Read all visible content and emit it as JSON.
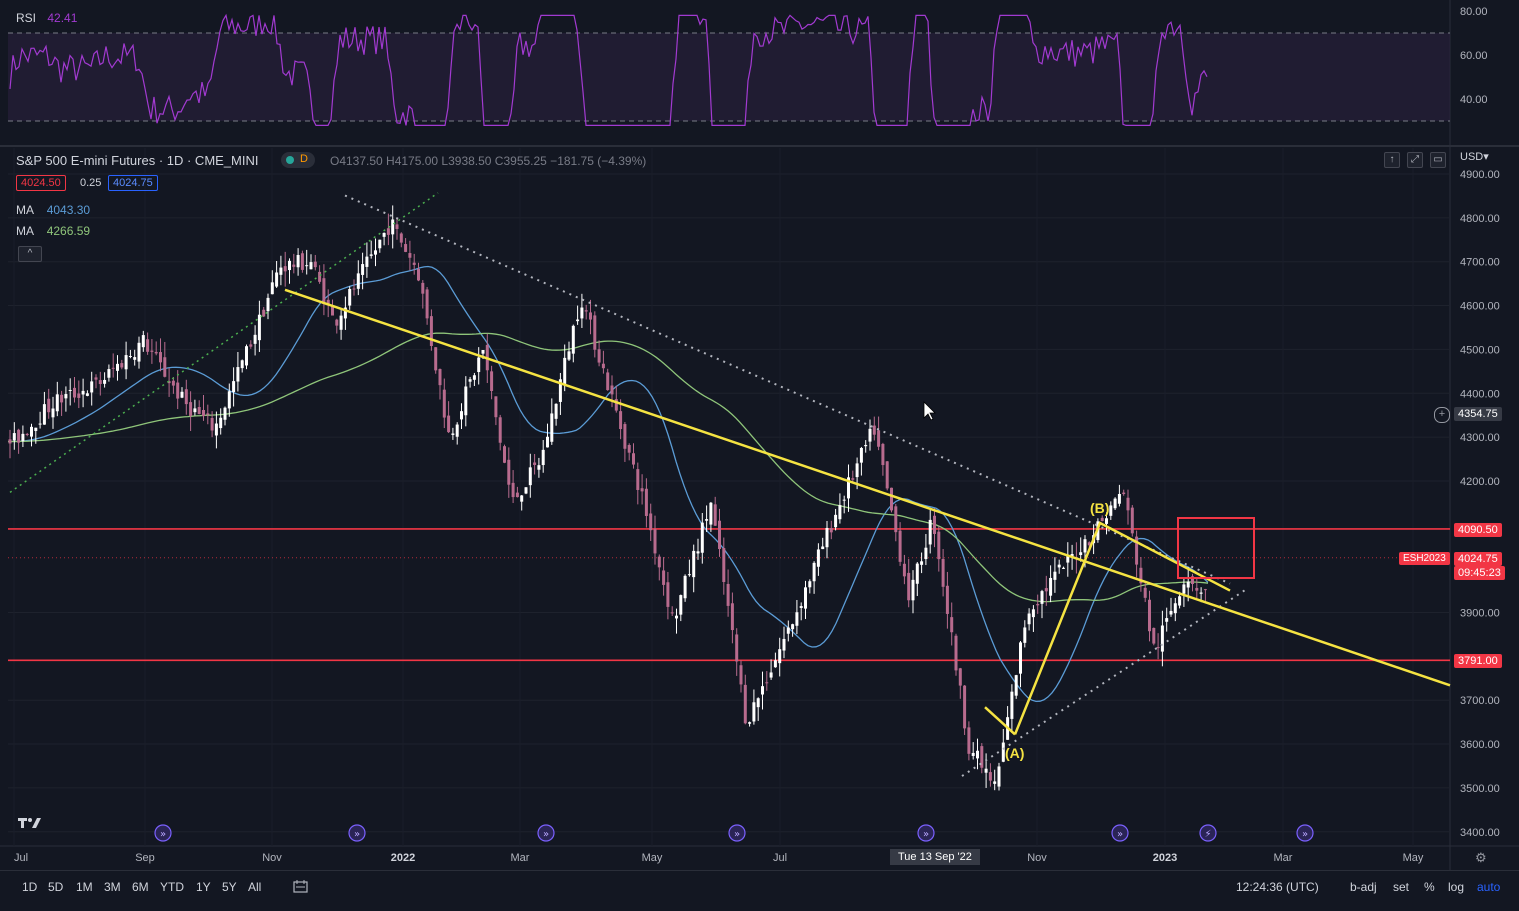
{
  "rsi": {
    "label": "RSI",
    "value": "42.41",
    "ticks": [
      "80.00",
      "60.00",
      "40.00"
    ]
  },
  "symbol": {
    "title": "S&P 500 E-mini Futures · 1D · CME_MINI",
    "flag": "D",
    "ohlc": "O4137.50 H4175.00 L3938.50 C3955.25 −181.75 (−4.39%)",
    "bid": "4024.50",
    "spread": "0.25",
    "ask": "4024.75"
  },
  "ma": [
    {
      "label": "MA",
      "value": "4043.30",
      "color": "#5b9cd6"
    },
    {
      "label": "MA",
      "value": "4266.59",
      "color": "#8fc57a"
    }
  ],
  "currency": "USD",
  "price_axis": {
    "ticks": [
      "4900.00",
      "4800.00",
      "4700.00",
      "4600.00",
      "4500.00",
      "4400.00",
      "4300.00",
      "4200.00",
      "3900.00",
      "3700.00",
      "3600.00",
      "3500.00",
      "3400.00"
    ],
    "crosshair_price": "4354.75",
    "level_high": "4090.50",
    "level_low": "3791.00",
    "last_symbol": "ESH2023",
    "last_price": "4024.75",
    "countdown": "09:45:23"
  },
  "time_axis": {
    "labels": [
      "Jul",
      "Sep",
      "Nov",
      "2022",
      "Mar",
      "May",
      "Jul",
      "Nov",
      "2023",
      "Mar",
      "May"
    ],
    "crosshair_date": "Tue 13 Sep '22"
  },
  "annotations": {
    "wave_a": "(A)",
    "wave_b": "(B)"
  },
  "timeframes": [
    "1D",
    "5D",
    "1M",
    "3M",
    "6M",
    "YTD",
    "1Y",
    "5Y",
    "All"
  ],
  "bottom_bar": {
    "clock": "12:24:36 (UTC)",
    "badj": "b-adj",
    "set": "set",
    "pct": "%",
    "log": "log",
    "auto": "auto"
  },
  "colors": {
    "bg": "#131722",
    "up": "#ffffff",
    "down": "#b86b8e",
    "ma_fast": "#5b9cd6",
    "ma_slow": "#8fc57a",
    "rsi": "#a23ad1",
    "level": "#f23645",
    "trend": "#f5e342"
  },
  "chart_data": {
    "type": "candlestick",
    "title": "S&P 500 E-mini Futures · 1D · CME_MINI",
    "x_range": [
      "2021-07",
      "2023-05"
    ],
    "ylim": [
      3400,
      4900
    ],
    "horizontal_levels": [
      4090.5,
      3791.0
    ],
    "last_price": 4024.75,
    "series": [
      {
        "name": "MA",
        "last": 4043.3
      },
      {
        "name": "MA",
        "last": 4266.59
      }
    ],
    "price_path": [
      {
        "t": "2021-07-01",
        "v": 4290
      },
      {
        "t": "2021-07-20",
        "v": 4380
      },
      {
        "t": "2021-08-10",
        "v": 4420
      },
      {
        "t": "2021-09-01",
        "v": 4520
      },
      {
        "t": "2021-09-20",
        "v": 4380
      },
      {
        "t": "2021-10-05",
        "v": 4320
      },
      {
        "t": "2021-10-25",
        "v": 4550
      },
      {
        "t": "2021-11-05",
        "v": 4690
      },
      {
        "t": "2021-11-20",
        "v": 4700
      },
      {
        "t": "2021-12-01",
        "v": 4560
      },
      {
        "t": "2021-12-28",
        "v": 4790
      },
      {
        "t": "2022-01-10",
        "v": 4680
      },
      {
        "t": "2022-01-25",
        "v": 4300
      },
      {
        "t": "2022-02-10",
        "v": 4500
      },
      {
        "t": "2022-02-24",
        "v": 4150
      },
      {
        "t": "2022-03-10",
        "v": 4250
      },
      {
        "t": "2022-03-29",
        "v": 4620
      },
      {
        "t": "2022-04-12",
        "v": 4400
      },
      {
        "t": "2022-04-28",
        "v": 4150
      },
      {
        "t": "2022-05-12",
        "v": 3880
      },
      {
        "t": "2022-05-30",
        "v": 4150
      },
      {
        "t": "2022-06-16",
        "v": 3650
      },
      {
        "t": "2022-07-08",
        "v": 3880
      },
      {
        "t": "2022-07-29",
        "v": 4130
      },
      {
        "t": "2022-08-16",
        "v": 4320
      },
      {
        "t": "2022-09-02",
        "v": 3930
      },
      {
        "t": "2022-09-13",
        "v": 4120
      },
      {
        "t": "2022-09-30",
        "v": 3600
      },
      {
        "t": "2022-10-13",
        "v": 3500
      },
      {
        "t": "2022-10-28",
        "v": 3900
      },
      {
        "t": "2022-11-10",
        "v": 3980
      },
      {
        "t": "2022-11-30",
        "v": 4090
      },
      {
        "t": "2022-12-13",
        "v": 4180
      },
      {
        "t": "2022-12-28",
        "v": 3810
      },
      {
        "t": "2023-01-12",
        "v": 3990
      },
      {
        "t": "2023-01-18",
        "v": 3955
      }
    ]
  }
}
